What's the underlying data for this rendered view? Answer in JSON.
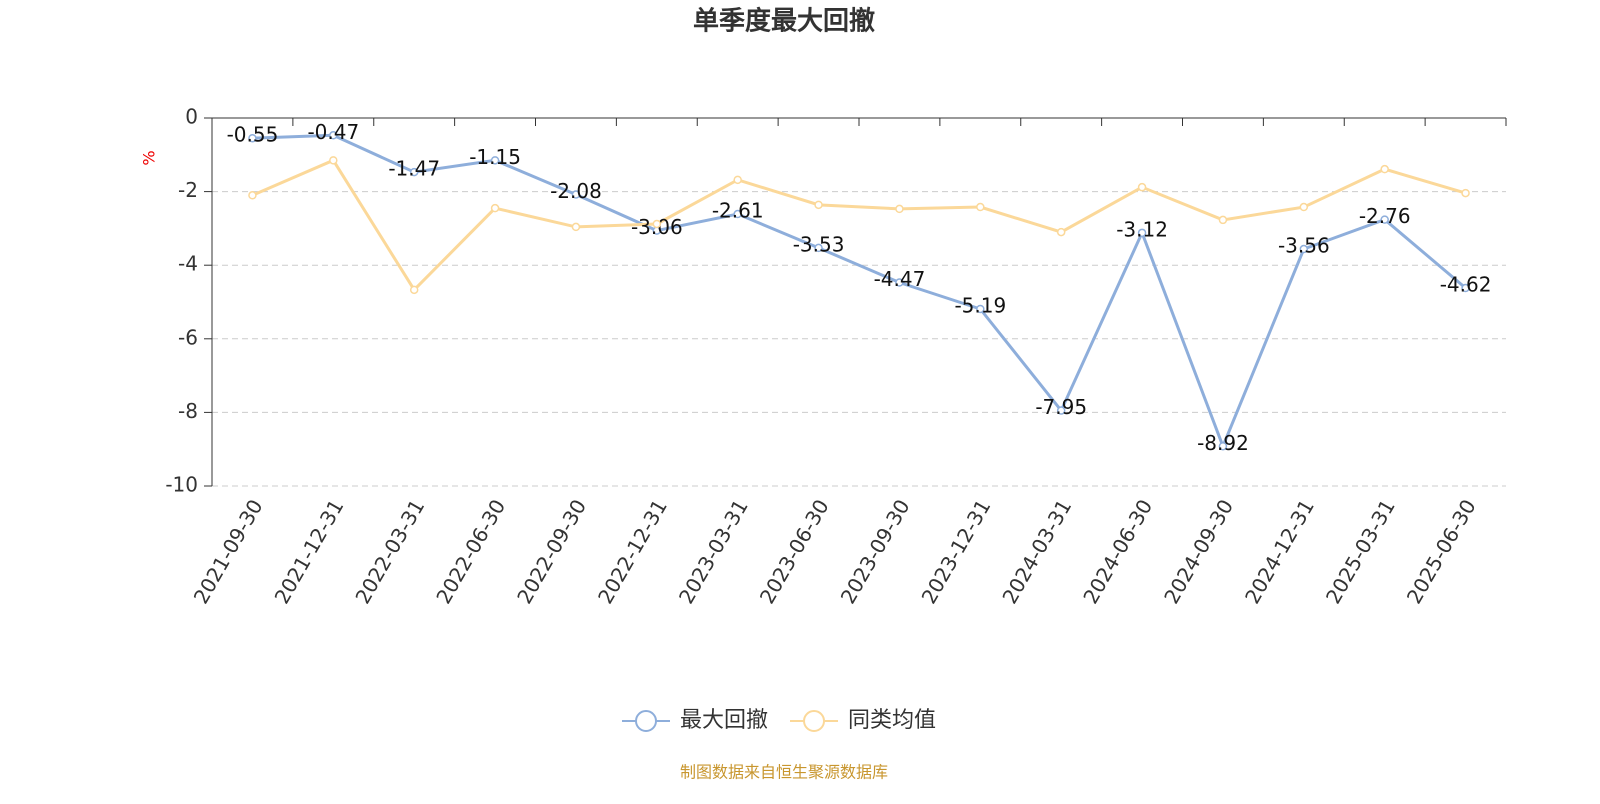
{
  "chart_data": {
    "type": "line",
    "title": "单季度最大回撤",
    "y_label": "%",
    "categories": [
      "2021-09-30",
      "2021-12-31",
      "2022-03-31",
      "2022-06-30",
      "2022-09-30",
      "2022-12-31",
      "2023-03-31",
      "2023-06-30",
      "2023-09-30",
      "2023-12-31",
      "2024-03-31",
      "2024-06-30",
      "2024-09-30",
      "2024-12-31",
      "2025-03-31",
      "2025-06-30"
    ],
    "series": [
      {
        "name": "最大回撤",
        "color": "#8eaedb",
        "show_labels": true,
        "values": [
          -0.55,
          -0.47,
          -1.47,
          -1.15,
          -2.08,
          -3.06,
          -2.61,
          -3.53,
          -4.47,
          -5.19,
          -7.95,
          -3.12,
          -8.92,
          -3.56,
          -2.76,
          -4.62
        ]
      },
      {
        "name": "同类均值",
        "color": "#fbd899",
        "show_labels": false,
        "values": [
          -2.1,
          -1.15,
          -4.67,
          -2.45,
          -2.96,
          -2.88,
          -1.68,
          -2.36,
          -2.47,
          -2.42,
          -3.1,
          -1.88,
          -2.77,
          -2.42,
          -1.39,
          -2.04
        ]
      }
    ],
    "ylim": [
      -10,
      0
    ],
    "yticks": [
      0,
      -2,
      -4,
      -6,
      -8,
      -10
    ],
    "grid": true,
    "source": "制图数据来自恒生聚源数据库"
  }
}
